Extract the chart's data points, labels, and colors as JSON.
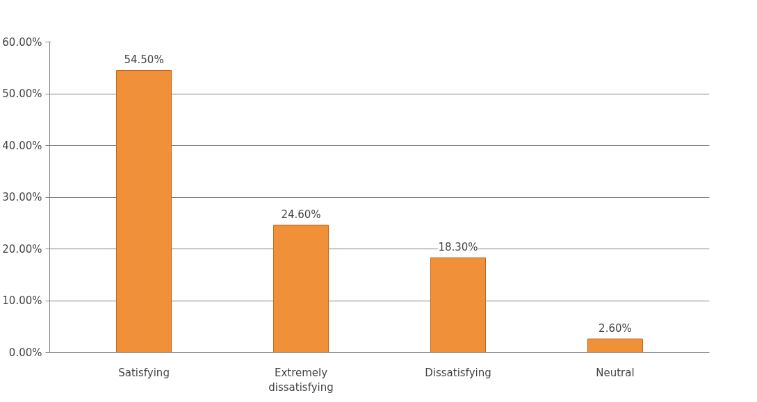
{
  "chart_data": {
    "type": "bar",
    "categories": [
      "Satisfying",
      "Extremely dissatisfying",
      "Dissatisfying",
      "Neutral"
    ],
    "values": [
      54.5,
      24.6,
      18.3,
      2.6
    ],
    "value_labels": [
      "54.50%",
      "24.60%",
      "18.30%",
      "2.60%"
    ],
    "color": "#f0913a",
    "ylim": [
      0,
      60
    ],
    "yticks": [
      {
        "value": 0,
        "label": "0.00%"
      },
      {
        "value": 10,
        "label": "10.00%"
      },
      {
        "value": 20,
        "label": "20.00%"
      },
      {
        "value": 30,
        "label": "30.00%"
      },
      {
        "value": 40,
        "label": "40.00%"
      },
      {
        "value": 50,
        "label": "50.00%"
      },
      {
        "value": 60,
        "label": "60.00%"
      }
    ],
    "grid": "y"
  }
}
